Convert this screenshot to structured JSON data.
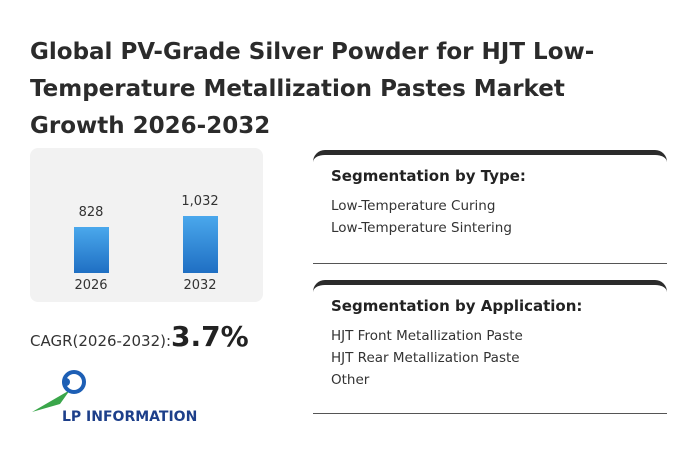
{
  "title": "Global PV-Grade Silver Powder for HJT Low-Temperature Metallization Pastes Market Growth 2026-2032",
  "chart_data": {
    "type": "bar",
    "categories": [
      "2026",
      "2032"
    ],
    "values": [
      828,
      1032
    ],
    "value_labels": [
      "828",
      "1,032"
    ],
    "color": "#2a85d6"
  },
  "cagr": {
    "label": "CAGR(2026-2032):",
    "value": "3.7%"
  },
  "segments": [
    {
      "title": "Segmentation by Type:",
      "items": [
        "Low-Temperature Curing",
        "Low-Temperature Sintering"
      ]
    },
    {
      "title": "Segmentation by Application:",
      "items": [
        "HJT Front Metallization Paste",
        "HJT Rear Metallization Paste",
        "Other"
      ]
    }
  ],
  "logo": "LP INFORMATION"
}
